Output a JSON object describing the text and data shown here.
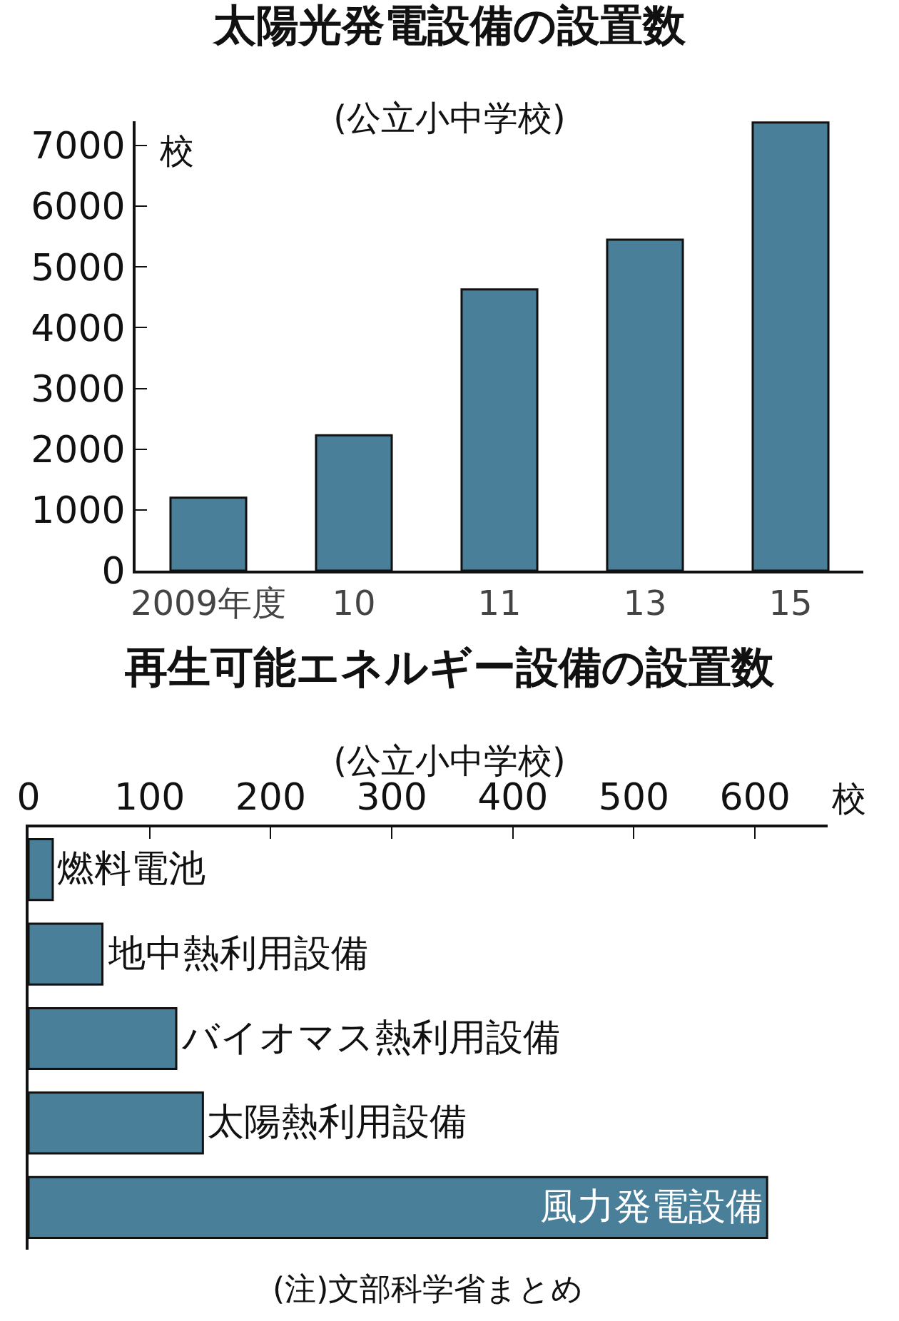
{
  "chart_data": [
    {
      "type": "bar",
      "title": "太陽光発電設備の設置数",
      "subtitle": "(公立小中学校)",
      "ylabel": "校",
      "categories": [
        "2009年度",
        "10",
        "11",
        "13",
        "15"
      ],
      "values": [
        1200,
        2230,
        4630,
        5450,
        7380
      ],
      "color": "#4a7f9a",
      "ylim": [
        0,
        7400
      ],
      "yticks": [
        0,
        1000,
        2000,
        3000,
        4000,
        5000,
        6000,
        7000
      ],
      "grid": false,
      "legend": false
    },
    {
      "type": "bar",
      "orientation": "horizontal",
      "title": "再生可能エネルギー設備の設置数",
      "subtitle": "(公立小中学校)",
      "xlabel": "校",
      "categories": [
        "燃料電池",
        "地中熱利用設備",
        "バイオマス熱利用設備",
        "太陽熱利用設備",
        "風力発電設備"
      ],
      "values": [
        20,
        61,
        122,
        144,
        610
      ],
      "color": "#4a7f9a",
      "xlim": [
        0,
        660
      ],
      "xticks": [
        0,
        100,
        200,
        300,
        400,
        500,
        600
      ],
      "grid": false,
      "legend": false,
      "tick_labels": "x",
      "annotations": [
        "(注)文部科学省まとめ"
      ]
    }
  ]
}
